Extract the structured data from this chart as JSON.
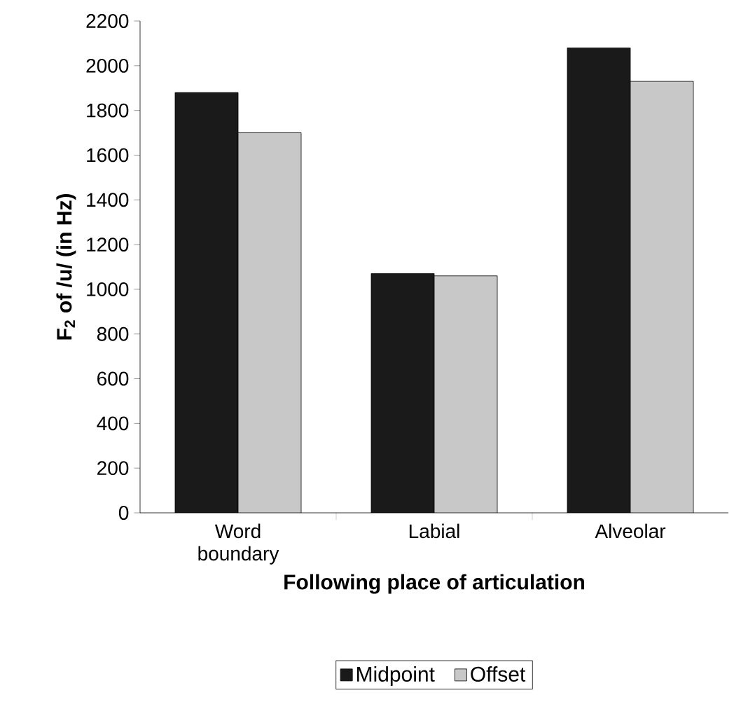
{
  "chart_data": {
    "type": "bar",
    "xlabel": "Following place of articulation",
    "ylabel": "F$_{2}$ of /u/ (in Hz)",
    "categories": [
      "Word boundary",
      "Labial",
      "Alveolar"
    ],
    "series": [
      {
        "name": "Midpoint",
        "color": "#1a1a1a",
        "values": [
          1880,
          1070,
          2080
        ]
      },
      {
        "name": "Offset",
        "color": "#c8c8c8",
        "values": [
          1700,
          1060,
          1930
        ]
      }
    ],
    "ylim": [
      0,
      2200
    ],
    "yticks": [
      0,
      200,
      400,
      600,
      800,
      1000,
      1200,
      1400,
      1600,
      1800,
      2000,
      2200
    ],
    "grid": false,
    "legend": "bottom"
  }
}
